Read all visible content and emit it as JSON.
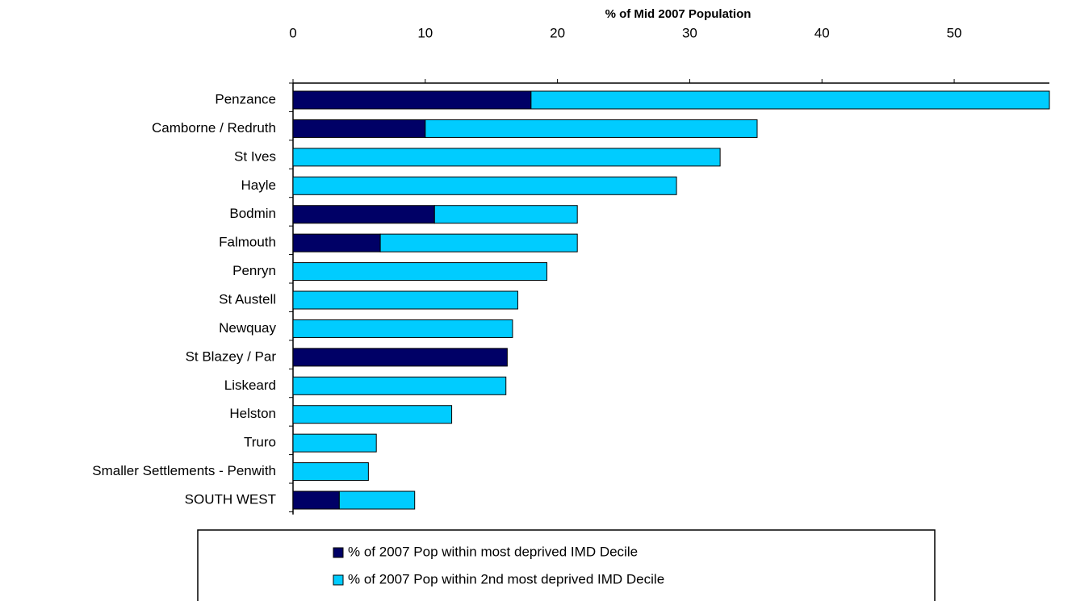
{
  "chart_data": {
    "type": "bar",
    "orientation": "horizontal",
    "stacked": true,
    "title": "% of Mid 2007 Population",
    "categories": [
      "Penzance",
      "Camborne / Redruth",
      "St Ives",
      "Hayle",
      "Bodmin",
      "Falmouth",
      "Penryn",
      "St Austell",
      "Newquay",
      "St Blazey / Par",
      "Liskeard",
      "Helston",
      "Truro",
      "Smaller Settlements - Penwith",
      "SOUTH WEST"
    ],
    "series": [
      {
        "name": "% of 2007 Pop within most deprived IMD Decile",
        "color": "#000066",
        "values": [
          18.0,
          10.0,
          0,
          0,
          10.7,
          6.6,
          0,
          0,
          0,
          16.2,
          0,
          0,
          0,
          0,
          3.5
        ]
      },
      {
        "name": "% of 2007 Pop within 2nd most deprived IMD Decile",
        "color": "#00ccff",
        "values": [
          39.2,
          25.1,
          32.3,
          29.0,
          10.8,
          14.9,
          19.2,
          17.0,
          16.6,
          0,
          16.1,
          12.0,
          6.3,
          5.7,
          5.7
        ]
      }
    ],
    "xlim": [
      0,
      57.2
    ],
    "xticks": [
      0,
      10,
      20,
      30,
      40,
      50
    ],
    "legend": "bottom"
  }
}
